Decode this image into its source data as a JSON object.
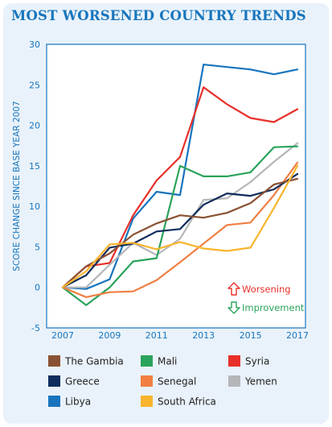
{
  "title": "MOST WORSENED COUNTRY TRENDS",
  "chart_data": {
    "type": "line",
    "title": "MOST WORSENED COUNTRY TRENDS",
    "ylabel": "SCORE CHANGE SINCE BASE YEAR 2007",
    "xlabel": "",
    "x": [
      2007,
      2008,
      2009,
      2010,
      2011,
      2012,
      2012.5,
      2013,
      2014,
      2015,
      2016,
      2017,
      2017.5
    ],
    "xticks": [
      2007,
      2009,
      2011,
      2013,
      2015,
      2017
    ],
    "ylim": [
      -5,
      30
    ],
    "yticks": [
      -5,
      0,
      5,
      10,
      15,
      20,
      25,
      30
    ],
    "grid": false,
    "legend": "bottom",
    "series": [
      {
        "name": "Libya",
        "color": "#1874bd",
        "values": [
          0,
          -0.2,
          1.0,
          8.5,
          11.8,
          11.4,
          null,
          27.5,
          27.2,
          26.9,
          26.3,
          26.9,
          null
        ]
      },
      {
        "name": "Syria",
        "color": "#e8302a",
        "values": [
          0,
          2.6,
          3.0,
          8.9,
          13.2,
          16.1,
          null,
          24.7,
          22.6,
          20.9,
          20.4,
          22.0,
          null
        ]
      },
      {
        "name": "Yemen",
        "color": "#b5b6b9",
        "values": [
          0,
          0,
          2.8,
          5.5,
          4.0,
          6.0,
          null,
          10.8,
          11.0,
          13.0,
          15.5,
          17.8,
          null
        ]
      },
      {
        "name": "Mali",
        "color": "#2aa35b",
        "values": [
          0,
          -2.2,
          0,
          3.2,
          3.6,
          15.0,
          null,
          13.7,
          13.7,
          14.2,
          17.3,
          17.4,
          null
        ]
      },
      {
        "name": "Senegal",
        "color": "#f07f41",
        "values": [
          0,
          -1.2,
          -0.6,
          -0.5,
          0.9,
          3.1,
          null,
          5.4,
          7.7,
          8.0,
          11.4,
          15.4,
          null
        ]
      },
      {
        "name": "Greece",
        "color": "#0e2c5c",
        "values": [
          0,
          1.5,
          4.9,
          5.4,
          6.9,
          7.2,
          null,
          10.2,
          11.6,
          11.3,
          12.1,
          14.0,
          null
        ]
      },
      {
        "name": "The Gambia",
        "color": "#8a5234",
        "values": [
          0,
          2.6,
          4.2,
          6.5,
          7.9,
          8.9,
          null,
          8.6,
          9.2,
          10.4,
          12.7,
          13.4,
          null
        ]
      },
      {
        "name": "South Africa",
        "color": "#f8b52d",
        "values": [
          0,
          2.0,
          5.3,
          5.5,
          4.7,
          5.6,
          null,
          4.8,
          4.5,
          4.9,
          9.8,
          15.0,
          null
        ]
      }
    ],
    "annotations": [
      {
        "text": "Worsening",
        "icon": "arrow-up-outline-icon",
        "color": "#e8302a"
      },
      {
        "text": "Improvement",
        "icon": "arrow-down-outline-icon",
        "color": "#2aa35b"
      }
    ],
    "legend_order": [
      "The Gambia",
      "Mali",
      "Syria",
      "Greece",
      "Senegal",
      "Yemen",
      "Libya",
      "South Africa"
    ]
  }
}
